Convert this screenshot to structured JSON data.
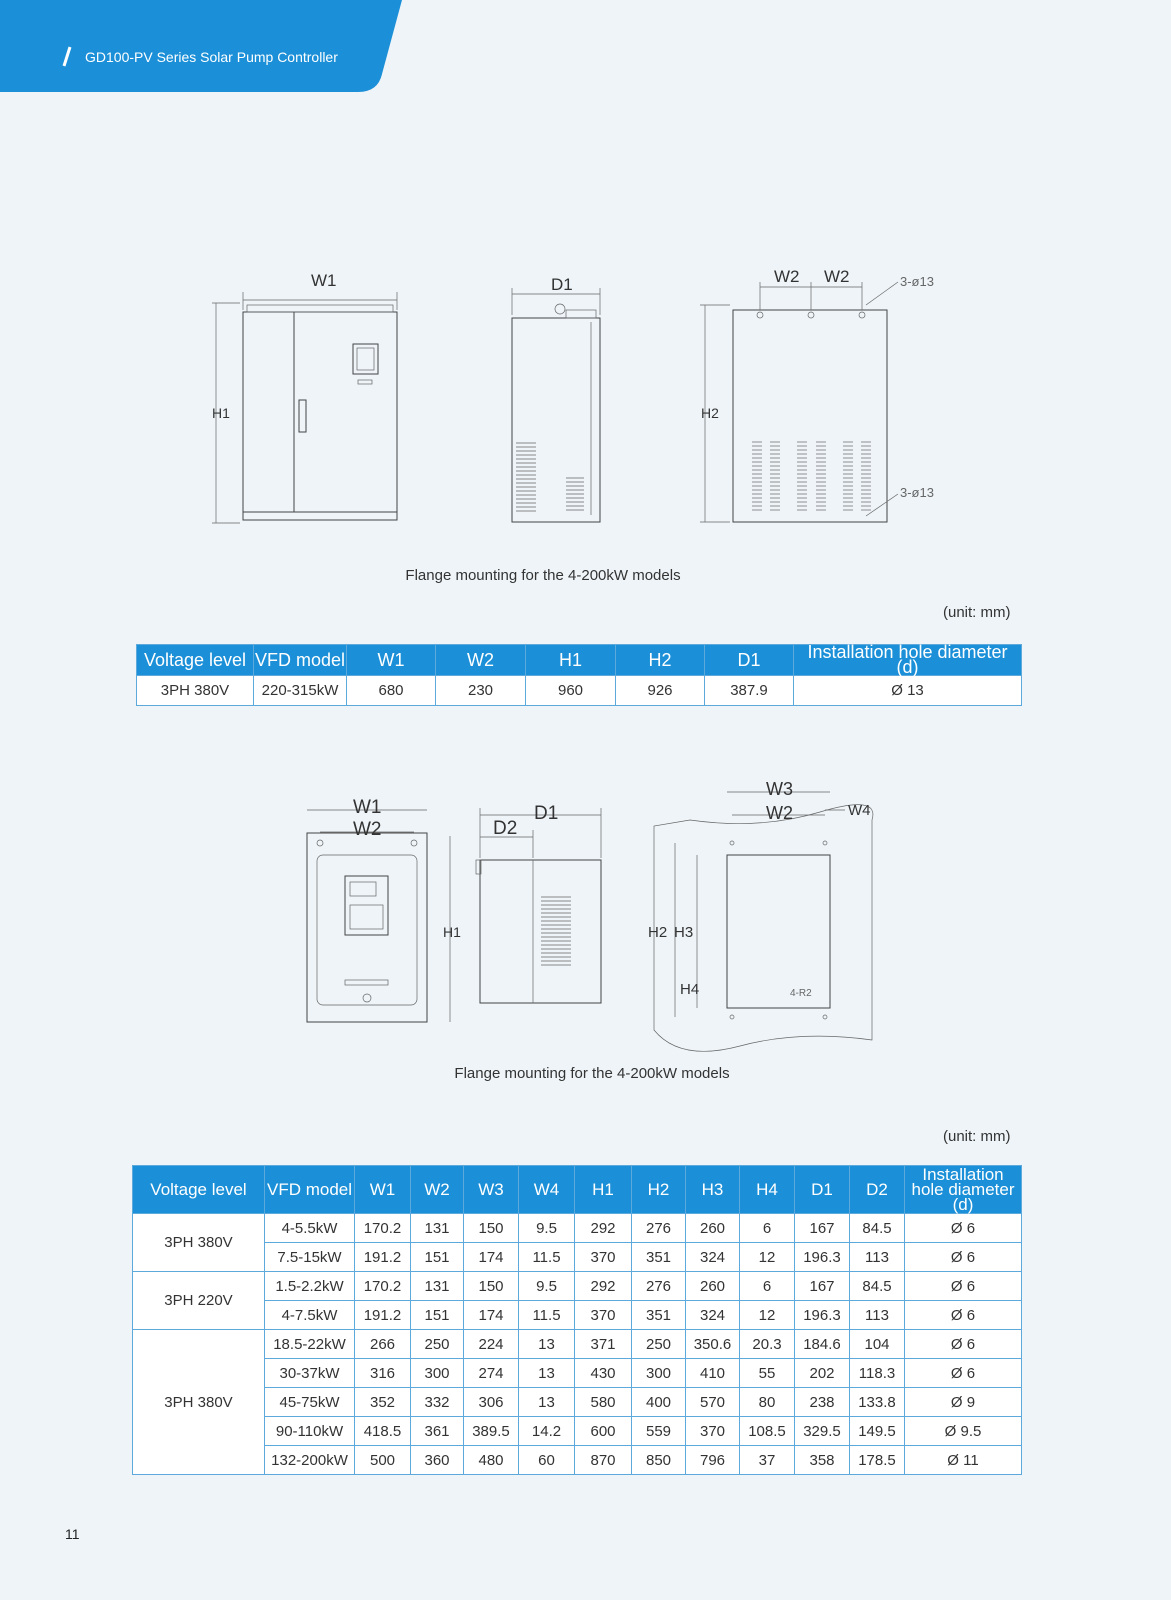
{
  "header": {
    "title": "GD100-PV Series Solar Pump Controller"
  },
  "diagram1": {
    "labels": [
      "W1",
      "H1",
      "D1",
      "W2",
      "W2",
      "3-ø13",
      "H2",
      "3-ø13"
    ],
    "caption": "Flange mounting for the 4-200kW models",
    "unit": "(unit: mm)"
  },
  "table1": {
    "header": [
      "Voltage level",
      "VFD model",
      "W1",
      "W2",
      "H1",
      "H2",
      "D1",
      "Installation hole diameter (d)"
    ],
    "rows": [
      [
        "3PH 380V",
        "220-315kW",
        680,
        230,
        960,
        926,
        387.9,
        "Ø 13"
      ]
    ]
  },
  "diagram2": {
    "labels": [
      "W1",
      "W2",
      "D2",
      "D1",
      "H1",
      "W3",
      "W2",
      "W4",
      "H2",
      "H3",
      "H4",
      "4-R2"
    ],
    "caption": "Flange mounting for the 4-200kW models",
    "unit": "(unit: mm)"
  },
  "table2": {
    "header": [
      "Voltage level",
      "VFD model",
      "W1",
      "W2",
      "W3",
      "W4",
      "H1",
      "H2",
      "H3",
      "H4",
      "D1",
      "D2",
      "Installation hole diameter (d)"
    ],
    "groups": [
      {
        "voltage": "3PH 380V",
        "rows": [
          [
            "4-5.5kW",
            170.2,
            131,
            150,
            9.5,
            292,
            276,
            260,
            6,
            167,
            84.5,
            "Ø 6"
          ],
          [
            "7.5-15kW",
            191.2,
            151,
            174,
            11.5,
            370,
            351,
            324,
            12,
            196.3,
            113,
            "Ø 6"
          ]
        ]
      },
      {
        "voltage": "3PH 220V",
        "rows": [
          [
            "1.5-2.2kW",
            170.2,
            131,
            150,
            9.5,
            292,
            276,
            260,
            6,
            167,
            84.5,
            "Ø 6"
          ],
          [
            "4-7.5kW",
            191.2,
            151,
            174,
            11.5,
            370,
            351,
            324,
            12,
            196.3,
            113,
            "Ø 6"
          ]
        ]
      },
      {
        "voltage": "3PH 380V",
        "rows": [
          [
            "18.5-22kW",
            266,
            250,
            224,
            13,
            371,
            250,
            350.6,
            20.3,
            184.6,
            104,
            "Ø 6"
          ],
          [
            "30-37kW",
            316,
            300,
            274,
            13,
            430,
            300,
            410,
            55,
            202,
            118.3,
            "Ø 6"
          ],
          [
            "45-75kW",
            352,
            332,
            306,
            13,
            580,
            400,
            570,
            80,
            238,
            133.8,
            "Ø 9"
          ],
          [
            "90-110kW",
            418.5,
            361,
            389.5,
            14.2,
            600,
            559,
            370,
            108.5,
            329.5,
            149.5,
            "Ø 9.5"
          ],
          [
            "132-200kW",
            500,
            360,
            480,
            60,
            870,
            850,
            796,
            37,
            358,
            178.5,
            "Ø 11"
          ]
        ]
      }
    ]
  },
  "page_number": "11"
}
